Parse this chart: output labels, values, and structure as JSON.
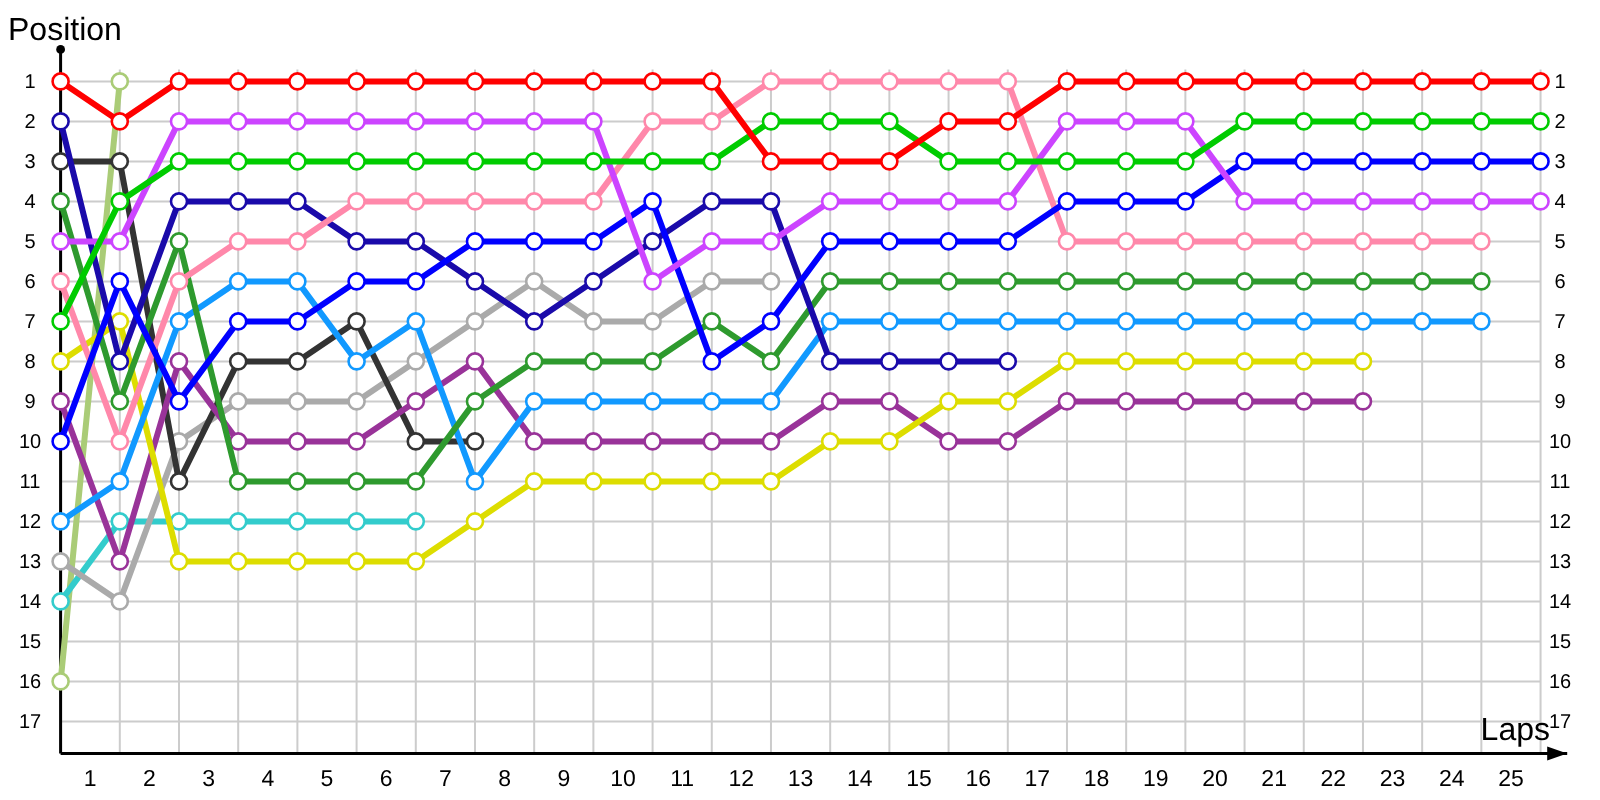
{
  "chart_data": {
    "type": "line",
    "xlabel": "Laps",
    "ylabel": "Position",
    "marker": "circle",
    "grid": true,
    "x": [
      0,
      1,
      2,
      3,
      4,
      5,
      6,
      7,
      8,
      9,
      10,
      11,
      12,
      13,
      14,
      15,
      16,
      17,
      18,
      19,
      20,
      21,
      22,
      23,
      24,
      25
    ],
    "xlim": [
      0,
      25.45
    ],
    "xticks": [
      {
        "value": 1,
        "label": null
      },
      {
        "value": 2,
        "label": null
      },
      {
        "value": 3,
        "label": null
      },
      {
        "value": 4,
        "label": null
      },
      {
        "value": 5,
        "label": null
      },
      {
        "value": 6,
        "label": null
      },
      {
        "value": 7,
        "label": null
      },
      {
        "value": 8,
        "label": null
      },
      {
        "value": 9,
        "label": null
      },
      {
        "value": 10,
        "label": null
      },
      {
        "value": 11,
        "label": null
      },
      {
        "value": 12,
        "label": null
      },
      {
        "value": 13,
        "label": null
      },
      {
        "value": 14,
        "label": null
      },
      {
        "value": 15,
        "label": null
      },
      {
        "value": 16,
        "label": null
      },
      {
        "value": 17,
        "label": null
      },
      {
        "value": 18,
        "label": null
      },
      {
        "value": 19,
        "label": null
      },
      {
        "value": 20,
        "label": null
      },
      {
        "value": 21,
        "label": null
      },
      {
        "value": 22,
        "label": null
      },
      {
        "value": 23,
        "label": null
      },
      {
        "value": 24,
        "label": null
      },
      {
        "value": 25,
        "label": null
      },
      {
        "value": 0.5,
        "label": "1"
      },
      {
        "value": 1.5,
        "label": "2"
      },
      {
        "value": 2.5,
        "label": "3"
      },
      {
        "value": 3.5,
        "label": "4"
      },
      {
        "value": 4.5,
        "label": "5"
      },
      {
        "value": 5.5,
        "label": "6"
      },
      {
        "value": 6.5,
        "label": "7"
      },
      {
        "value": 7.5,
        "label": "8"
      },
      {
        "value": 8.5,
        "label": "9"
      },
      {
        "value": 9.5,
        "label": "10"
      },
      {
        "value": 10.5,
        "label": "11"
      },
      {
        "value": 11.5,
        "label": "12"
      },
      {
        "value": 12.5,
        "label": "13"
      },
      {
        "value": 13.5,
        "label": "14"
      },
      {
        "value": 14.5,
        "label": "15"
      },
      {
        "value": 15.5,
        "label": "16"
      },
      {
        "value": 16.5,
        "label": "17"
      },
      {
        "value": 17.5,
        "label": "18"
      },
      {
        "value": 18.5,
        "label": "19"
      },
      {
        "value": 19.5,
        "label": "20"
      },
      {
        "value": 20.5,
        "label": "21"
      },
      {
        "value": 21.5,
        "label": "22"
      },
      {
        "value": 22.5,
        "label": "23"
      },
      {
        "value": 23.5,
        "label": "24"
      },
      {
        "value": 24.5,
        "label": "25"
      }
    ],
    "ylim": [
      17.8,
      0.2
    ],
    "yticks": [
      1,
      2,
      3,
      4,
      5,
      6,
      7,
      8,
      9,
      10,
      11,
      12,
      13,
      14,
      15,
      16,
      17
    ],
    "y2lim": [
      17.8,
      0.2
    ],
    "y2ticks": [
      1,
      2,
      3,
      4,
      5,
      6,
      7,
      8,
      9,
      10,
      11,
      12,
      13,
      14,
      15,
      16,
      17
    ],
    "series": [
      {
        "color": "#aacc77",
        "values": [
          16,
          1,
          null,
          null,
          null,
          null,
          null,
          null,
          null,
          null,
          null,
          null,
          null,
          null,
          null,
          null,
          null,
          null,
          null,
          null,
          null,
          null,
          null,
          null,
          null,
          null
        ]
      },
      {
        "color": "#33cccc",
        "values": [
          14,
          12,
          12,
          12,
          12,
          12,
          12,
          null,
          null,
          null,
          null,
          null,
          null,
          null,
          null,
          null,
          null,
          null,
          null,
          null,
          null,
          null,
          null,
          null,
          null,
          null
        ]
      },
      {
        "color": "#aaaaaa",
        "values": [
          13,
          14,
          10,
          9,
          9,
          9,
          8,
          7,
          6,
          7,
          7,
          6,
          6,
          null,
          null,
          null,
          null,
          null,
          null,
          null,
          null,
          null,
          null,
          null,
          null,
          null
        ]
      },
      {
        "color": "#333333",
        "values": [
          3,
          3,
          11,
          8,
          8,
          7,
          10,
          10,
          null,
          null,
          null,
          null,
          null,
          null,
          null,
          null,
          null,
          null,
          null,
          null,
          null,
          null,
          null,
          null,
          null,
          null
        ]
      },
      {
        "color": "#993399",
        "values": [
          9,
          13,
          8,
          10,
          10,
          10,
          9,
          8,
          10,
          10,
          10,
          10,
          10,
          9,
          9,
          10,
          10,
          9,
          9,
          9,
          9,
          9,
          9,
          null,
          null,
          null
        ]
      },
      {
        "color": "#dddd00",
        "values": [
          8,
          7,
          13,
          13,
          13,
          13,
          13,
          12,
          11,
          11,
          11,
          11,
          11,
          10,
          10,
          9,
          9,
          8,
          8,
          8,
          8,
          8,
          8,
          null,
          null,
          null
        ]
      },
      {
        "color": "#1199ff",
        "values": [
          12,
          11,
          7,
          6,
          6,
          8,
          7,
          11,
          9,
          9,
          9,
          9,
          9,
          7,
          7,
          7,
          7,
          7,
          7,
          7,
          7,
          7,
          7,
          7,
          7,
          null
        ]
      },
      {
        "color": "#2e9a2e",
        "values": [
          4,
          9,
          5,
          11,
          11,
          11,
          11,
          9,
          8,
          8,
          8,
          7,
          8,
          6,
          6,
          6,
          6,
          6,
          6,
          6,
          6,
          6,
          6,
          6,
          6,
          null
        ]
      },
      {
        "color": "#1a0aaa",
        "values": [
          2,
          8,
          4,
          4,
          4,
          5,
          5,
          6,
          7,
          6,
          5,
          4,
          4,
          8,
          8,
          8,
          8,
          null,
          null,
          null,
          null,
          null,
          null,
          null,
          null,
          null
        ]
      },
      {
        "color": "#ff88aa",
        "values": [
          6,
          10,
          6,
          5,
          5,
          4,
          4,
          4,
          4,
          4,
          2,
          2,
          1,
          1,
          1,
          1,
          1,
          5,
          5,
          5,
          5,
          5,
          5,
          5,
          5,
          null
        ]
      },
      {
        "color": "#0000ff",
        "values": [
          10,
          6,
          9,
          7,
          7,
          6,
          6,
          5,
          5,
          5,
          4,
          8,
          7,
          5,
          5,
          5,
          5,
          4,
          4,
          4,
          3,
          3,
          3,
          3,
          3,
          3
        ]
      },
      {
        "color": "#cc44ff",
        "values": [
          5,
          5,
          2,
          2,
          2,
          2,
          2,
          2,
          2,
          2,
          6,
          5,
          5,
          4,
          4,
          4,
          4,
          2,
          2,
          2,
          4,
          4,
          4,
          4,
          4,
          4
        ]
      },
      {
        "color": "#00cc00",
        "values": [
          7,
          4,
          3,
          3,
          3,
          3,
          3,
          3,
          3,
          3,
          3,
          3,
          2,
          2,
          2,
          3,
          3,
          3,
          3,
          3,
          2,
          2,
          2,
          2,
          2,
          2
        ]
      },
      {
        "color": "#ff0000",
        "values": [
          1,
          2,
          1,
          1,
          1,
          1,
          1,
          1,
          1,
          1,
          1,
          1,
          3,
          3,
          3,
          2,
          2,
          1,
          1,
          1,
          1,
          1,
          1,
          1,
          1,
          1
        ]
      }
    ]
  }
}
